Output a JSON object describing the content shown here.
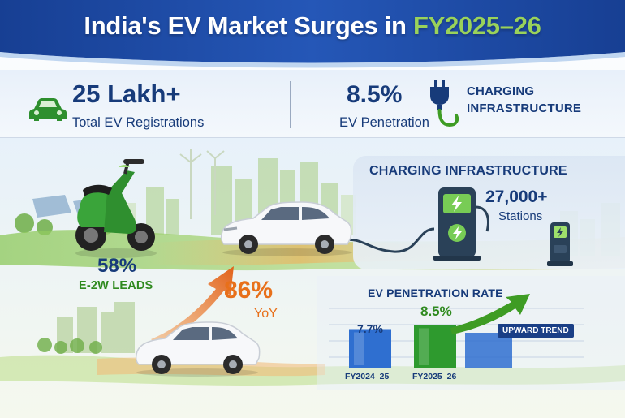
{
  "title": {
    "main": "India's EV Market Surges in ",
    "accent": "FY2025–26"
  },
  "stats": {
    "registrations_value": "25 Lakh+",
    "registrations_label": "Total EV Registrations",
    "penetration_value": "8.5%",
    "penetration_label": "EV Penetration",
    "charging_label_line1": "CHARGING",
    "charging_label_line2": "INFRASTRUCTURE"
  },
  "charging_panel": {
    "title": "CHARGING INFRASTRUCTURE",
    "stations_value": "27,000+",
    "stations_label": "Stations"
  },
  "two_wheeler": {
    "share_value": "58%",
    "share_label": "E-2W LEADS"
  },
  "growth": {
    "value": "86%",
    "label": "YoY"
  },
  "chart_data": {
    "type": "bar",
    "title": "EV PENETRATION RATE",
    "categories": [
      "FY2024–25",
      "FY2025–26"
    ],
    "series": [
      {
        "values": [
          7.7,
          8.5
        ]
      }
    ],
    "data_labels": [
      "7.7%",
      "8.5%"
    ],
    "annotation": "UPWARD TREND"
  },
  "colors": {
    "banner_blue": "#1e4fa8",
    "navy_text": "#173b7a",
    "accent_green": "#3e9c24",
    "accent_orange": "#e8701a",
    "bar_blue": "#2f6fd0",
    "bar_green": "#2e9a2e"
  },
  "icons": {
    "car": "car-icon",
    "plug": "plug-icon",
    "charger": "charging-station-icon",
    "bolt": "lightning-bolt-icon",
    "arrow": "trend-arrow-icon"
  }
}
